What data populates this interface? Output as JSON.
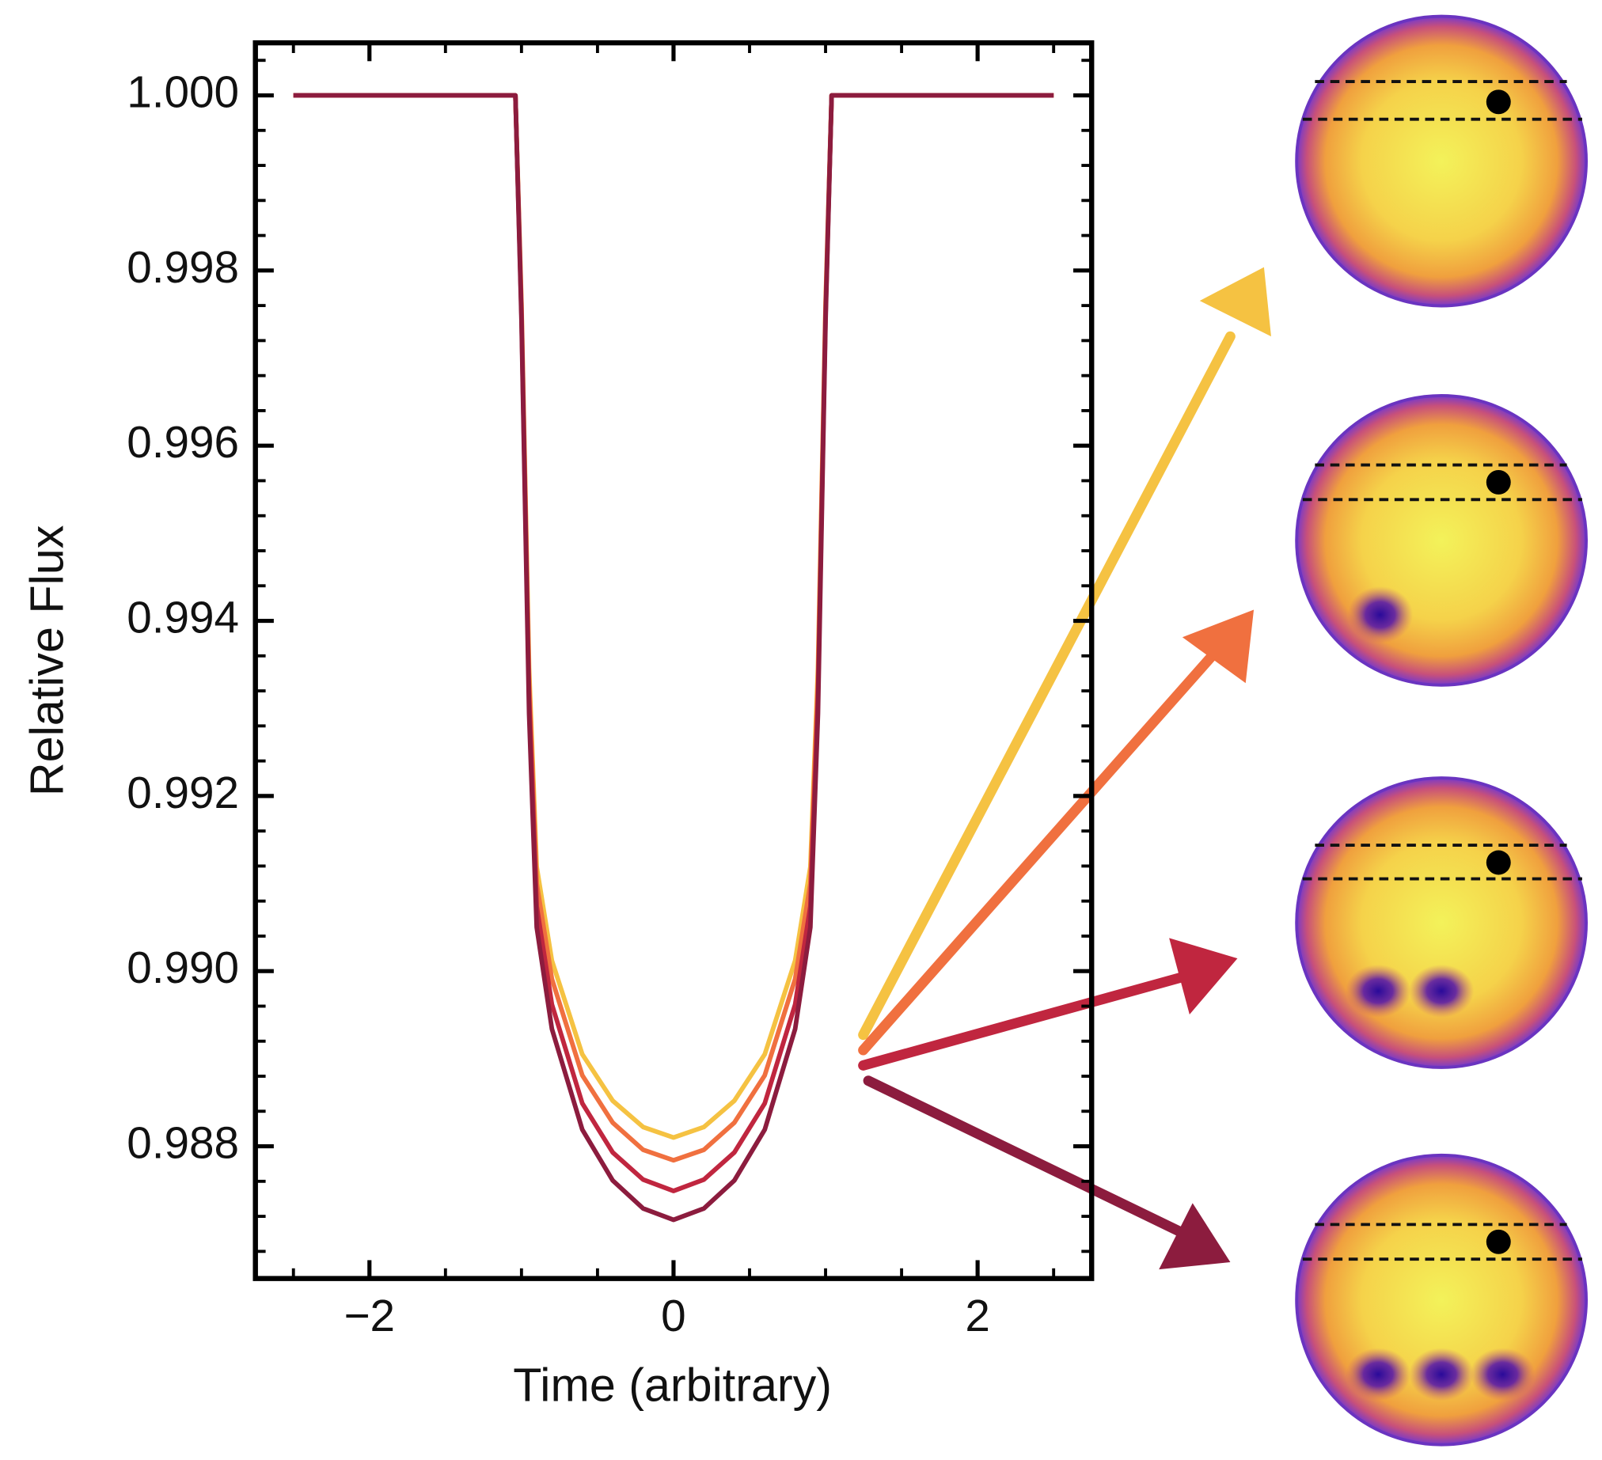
{
  "chart_data": {
    "type": "line",
    "xlabel": "Time (arbitrary)",
    "ylabel": "Relative Flux",
    "x": [
      -2.5,
      -1.04,
      -1.0,
      -0.95,
      -0.9,
      -0.8,
      -0.6,
      -0.4,
      -0.2,
      0,
      0.2,
      0.4,
      0.6,
      0.8,
      0.9,
      0.95,
      1.0,
      1.04,
      2.5
    ],
    "series": [
      {
        "color": "#f5c242",
        "values": [
          1.0,
          1.0,
          0.99762,
          0.99346,
          0.99119,
          0.99012,
          0.98905,
          0.98852,
          0.98822,
          0.9881,
          0.98822,
          0.98852,
          0.98905,
          0.99012,
          0.99119,
          0.99346,
          0.99762,
          1.0,
          1.0
        ]
      },
      {
        "color": "#f0703f",
        "values": [
          1.0,
          1.0,
          0.99757,
          0.99331,
          0.991,
          0.98991,
          0.98881,
          0.98827,
          0.98796,
          0.98784,
          0.98796,
          0.98827,
          0.98881,
          0.98991,
          0.991,
          0.99331,
          0.99757,
          1.0,
          1.0
        ]
      },
      {
        "color": "#c0263f",
        "values": [
          1.0,
          1.0,
          0.9975,
          0.99312,
          0.99074,
          0.98962,
          0.98849,
          0.98793,
          0.98762,
          0.98749,
          0.98762,
          0.98793,
          0.98849,
          0.98962,
          0.99074,
          0.99312,
          0.9975,
          1.0,
          1.0
        ]
      },
      {
        "color": "#8c1c3e",
        "values": [
          1.0,
          1.0,
          0.99743,
          0.99294,
          0.9905,
          0.98934,
          0.98819,
          0.98761,
          0.98729,
          0.98716,
          0.98729,
          0.98761,
          0.98819,
          0.98934,
          0.9905,
          0.99294,
          0.99743,
          1.0,
          1.0
        ]
      }
    ],
    "xlim": [
      -2.75,
      2.75
    ],
    "ylim": [
      0.98649,
      1.0006
    ],
    "xticks": [
      {
        "value": -2,
        "label": "−2"
      },
      0,
      2
    ],
    "yticks": [
      {
        "value": 0.988,
        "label": "0.988"
      },
      {
        "value": 0.99,
        "label": "0.990"
      },
      {
        "value": 0.992,
        "label": "0.992"
      },
      {
        "value": 0.994,
        "label": "0.994"
      },
      {
        "value": 0.996,
        "label": "0.996"
      },
      {
        "value": 0.998,
        "label": "0.998"
      },
      {
        "value": 1.0,
        "label": "1.000"
      }
    ],
    "minor_xticks": [
      -2.5,
      -1.5,
      -1,
      -0.5,
      0.5,
      1,
      1.5,
      2.5
    ],
    "minor_yticks": [
      0.9868,
      0.9872,
      0.9876,
      0.9884,
      0.9888,
      0.9892,
      0.9896,
      0.9904,
      0.9908,
      0.9912,
      0.9916,
      0.9924,
      0.9928,
      0.9932,
      0.9936,
      0.9944,
      0.9948,
      0.9952,
      0.9956,
      0.9964,
      0.9968,
      0.9972,
      0.9976,
      0.9984,
      0.9988,
      0.9992,
      0.9996,
      1.0004
    ],
    "grid": false
  }
}
